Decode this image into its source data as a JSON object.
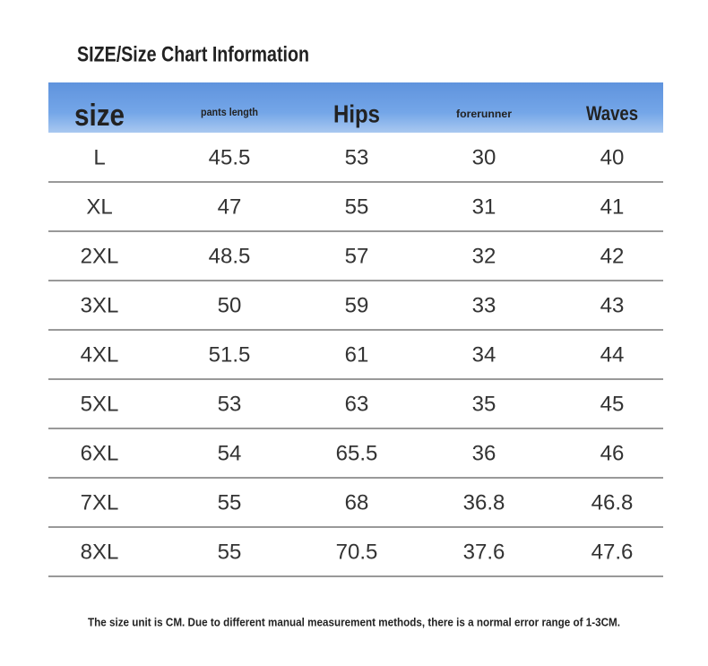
{
  "title": "SIZE/Size Chart Information",
  "table": {
    "headers": [
      "size",
      "pants length",
      "Hips",
      "forerunner",
      "Waves"
    ],
    "rows": [
      [
        "L",
        "45.5",
        "53",
        "30",
        "40"
      ],
      [
        "XL",
        "47",
        "55",
        "31",
        "41"
      ],
      [
        "2XL",
        "48.5",
        "57",
        "32",
        "42"
      ],
      [
        "3XL",
        "50",
        "59",
        "33",
        "43"
      ],
      [
        "4XL",
        "51.5",
        "61",
        "34",
        "44"
      ],
      [
        "5XL",
        "53",
        "63",
        "35",
        "45"
      ],
      [
        "6XL",
        "54",
        "65.5",
        "36",
        "46"
      ],
      [
        "7XL",
        "55",
        "68",
        "36.8",
        "46.8"
      ],
      [
        "8XL",
        "55",
        "70.5",
        "37.6",
        "47.6"
      ]
    ]
  },
  "footnote": "The size unit is CM. Due to different manual measurement methods, there is a normal error range of 1-3CM."
}
